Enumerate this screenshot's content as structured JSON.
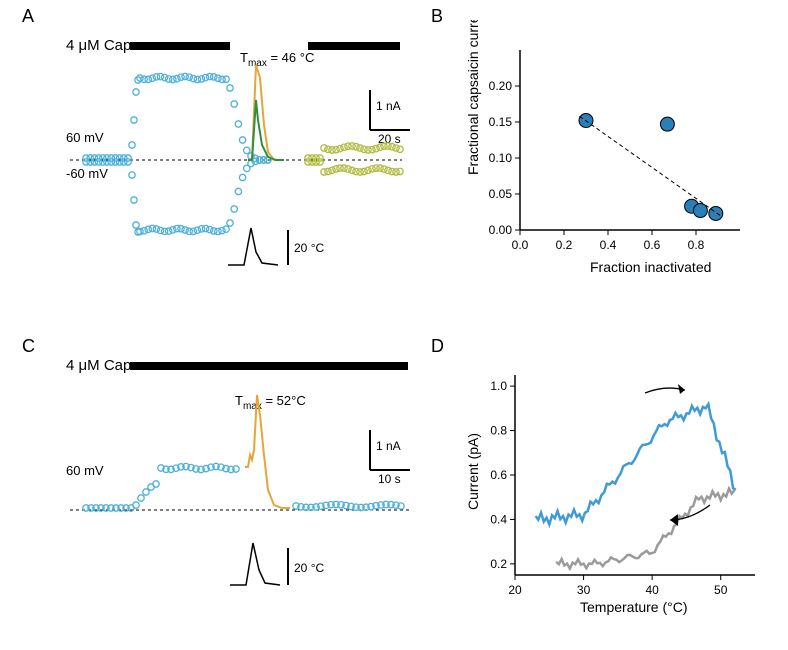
{
  "panelLabels": {
    "A": "A",
    "B": "B",
    "C": "C",
    "D": "D"
  },
  "A": {
    "cap_label": "4 μM Cap",
    "tmax": "T",
    "tmax_sub": "max",
    "tmax_eq": " = 46 ",
    "tmax_unit": "°C",
    "v_plus": "60 mV",
    "v_minus": "-60 mV",
    "scale_i": "1 nA",
    "scale_t": "20 s",
    "temp_scale": "20 ",
    "temp_scale_unit": "°C",
    "colors": {
      "pre": "#4fb0da",
      "post": "#b0bb3e",
      "heat_trace": "#e3a63b",
      "heat_trace2": "#2f8f3e"
    }
  },
  "B": {
    "xlabel": "Fraction inactivated",
    "ylabel": "Fractional capsaicin current",
    "xlim": [
      0,
      1
    ],
    "ylim": [
      0,
      0.25
    ],
    "xticks": [
      0.0,
      0.2,
      0.4,
      0.6,
      0.8
    ],
    "yticks": [
      0.0,
      0.05,
      0.1,
      0.15,
      0.2
    ],
    "points": [
      {
        "x": 0.3,
        "y": 0.152
      },
      {
        "x": 0.67,
        "y": 0.147
      },
      {
        "x": 0.78,
        "y": 0.033
      },
      {
        "x": 0.82,
        "y": 0.027
      },
      {
        "x": 0.89,
        "y": 0.023
      }
    ],
    "line": {
      "x1": 0.27,
      "y1": 0.158,
      "x2": 0.92,
      "y2": 0.018
    },
    "point_color": "#2a7fb8",
    "point_stroke": "#000000"
  },
  "C": {
    "cap_label": "4 μM Cap",
    "tmax": "T",
    "tmax_sub": "max",
    "tmax_eq": " = 52",
    "tmax_unit": "°C",
    "v_plus": "60 mV",
    "scale_i": "1 nA",
    "scale_t": "10 s",
    "temp_scale": "20 ",
    "temp_scale_unit": "°C",
    "colors": {
      "trace": "#4fb0da",
      "heat_trace": "#e3a63b"
    }
  },
  "D": {
    "xlabel": "Temperature (",
    "xlabel_unit": "°C)",
    "ylabel": "Current (pA)",
    "xlim": [
      20,
      55
    ],
    "ylim": [
      0.15,
      1.05
    ],
    "xticks": [
      20,
      30,
      40,
      50
    ],
    "yticks": [
      0.2,
      0.4,
      0.6,
      0.8,
      1.0
    ],
    "colors": {
      "heating": "#3f9bd6",
      "cooling": "#9b9b9b"
    }
  },
  "global": {
    "bg": "#ffffff",
    "text": "#000000"
  }
}
